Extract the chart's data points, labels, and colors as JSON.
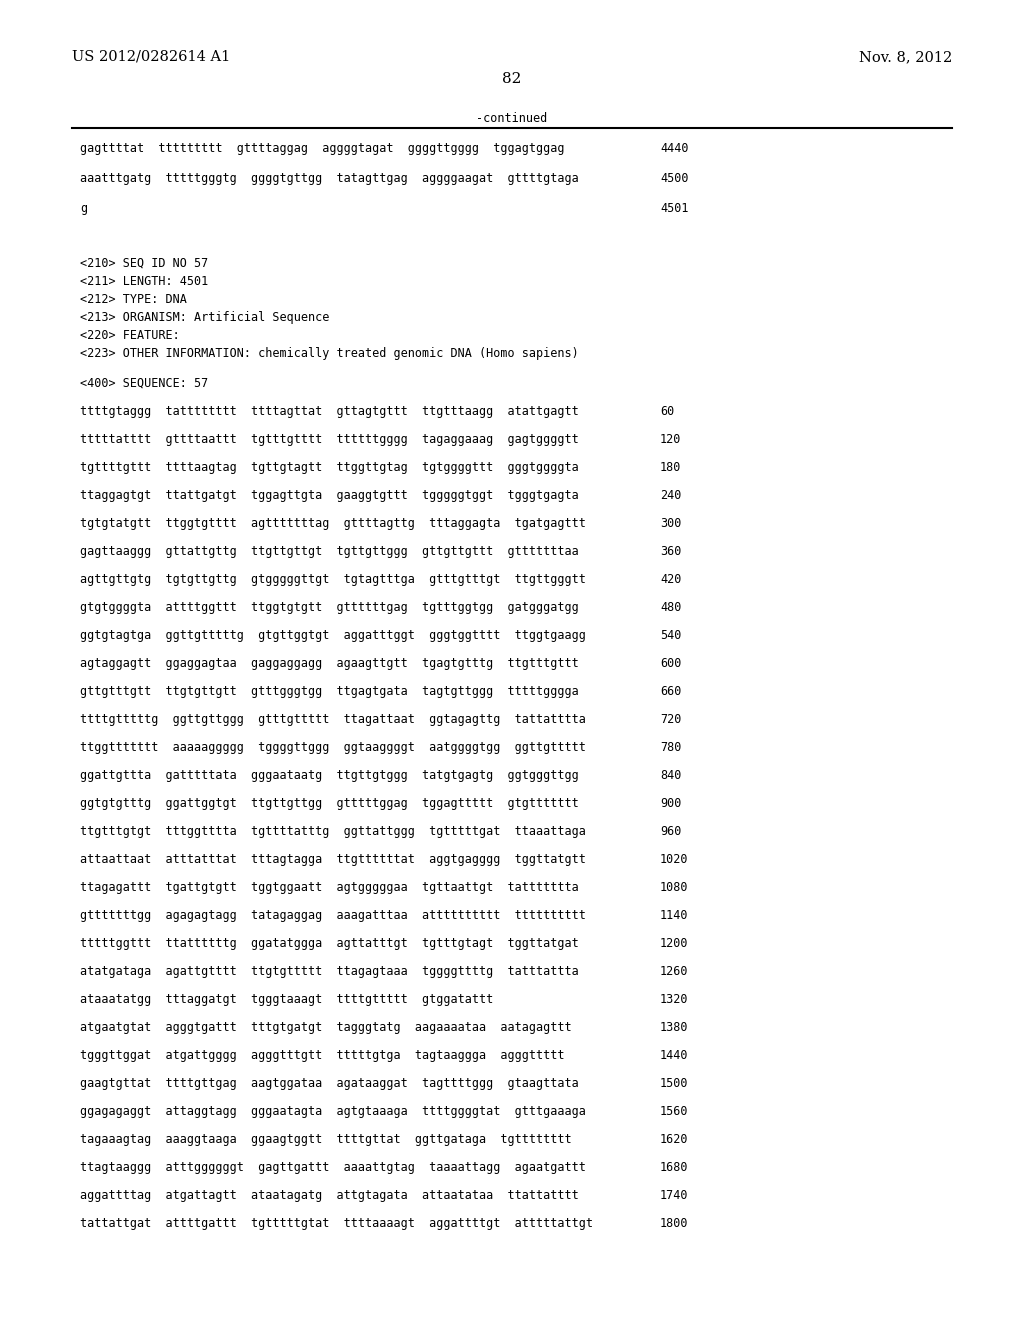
{
  "header_left": "US 2012/0282614 A1",
  "header_right": "Nov. 8, 2012",
  "page_number": "82",
  "continued_label": "-continued",
  "background_color": "#ffffff",
  "text_color": "#000000",
  "font_size_header": 10.5,
  "font_size_body": 8.5,
  "font_size_page": 11,
  "continuation_lines": [
    [
      "gagttttat  ttttttttt  gttttaggag  aggggtagat  ggggttgggg  tggagtggag",
      "4440"
    ],
    [
      "aaatttgatg  tttttgggtg  ggggtgttgg  tatagttgag  aggggaagat  gttttgtaga",
      "4500"
    ],
    [
      "g",
      "4501"
    ]
  ],
  "metadata_lines": [
    "<210> SEQ ID NO 57",
    "<211> LENGTH: 4501",
    "<212> TYPE: DNA",
    "<213> ORGANISM: Artificial Sequence",
    "<220> FEATURE:",
    "<223> OTHER INFORMATION: chemically treated genomic DNA (Homo sapiens)"
  ],
  "sequence_label": "<400> SEQUENCE: 57",
  "sequence_lines": [
    [
      "ttttgtaggg  tatttttttt  ttttagttat  gttagtgttt  ttgtttaagg  atattgagtt",
      "60"
    ],
    [
      "tttttatttt  gttttaattt  tgtttgtttt  ttttttgggg  tagaggaaag  gagtggggtt",
      "120"
    ],
    [
      "tgttttgttt  ttttaagtag  tgttgtagtt  ttggttgtag  tgtggggttt  gggtggggta",
      "180"
    ],
    [
      "ttaggagtgt  ttattgatgt  tggagttgta  gaaggtgttt  tgggggtggt  tgggtgagta",
      "240"
    ],
    [
      "tgtgtatgtt  ttggtgtttt  agtttttttag  gttttagttg  tttaggagta  tgatgagttt",
      "300"
    ],
    [
      "gagttaaggg  gttattgttg  ttgttgttgt  tgttgttggg  gttgttgttt  gtttttttaa",
      "360"
    ],
    [
      "agttgttgtg  tgtgttgttg  gtgggggttgt  tgtagtttga  gtttgtttgt  ttgttgggtt",
      "420"
    ],
    [
      "gtgtggggta  attttggttt  ttggtgtgtt  gttttttgag  tgtttggtgg  gatgggatgg",
      "480"
    ],
    [
      "ggtgtagtga  ggttgtttttg  gtgttggtgt  aggatttggt  gggtggtttt  ttggtgaagg",
      "540"
    ],
    [
      "agtaggagtt  ggaggagtaa  gaggaggagg  agaagttgtt  tgagtgtttg  ttgtttgttt",
      "600"
    ],
    [
      "gttgtttgtt  ttgtgttgtt  gtttgggtgg  ttgagtgata  tagtgttggg  tttttgggga",
      "660"
    ],
    [
      "ttttgtttttg  ggttgttggg  gtttgttttt  ttagattaat  ggtagagttg  tattatttta",
      "720"
    ],
    [
      "ttggttttttt  aaaaaggggg  tggggttggg  ggtaaggggt  aatggggtgg  ggttgttttt",
      "780"
    ],
    [
      "ggattgttta  gatttttata  gggaataatg  ttgttgtggg  tatgtgagtg  ggtgggttgg",
      "840"
    ],
    [
      "ggtgtgtttg  ggattggtgt  ttgttgttgg  gtttttggag  tggagttttt  gtgttttttt",
      "900"
    ],
    [
      "ttgtttgtgt  tttggtttta  tgttttatttg  ggttattggg  tgtttttgat  ttaaattaga",
      "960"
    ],
    [
      "attaattaat  atttatttat  tttagtagga  ttgttttttat  aggtgagggg  tggttatgtt",
      "1020"
    ],
    [
      "ttagagattt  tgattgtgtt  tggtggaatt  agtgggggaa  tgttaattgt  tattttttta",
      "1080"
    ],
    [
      "gtttttttgg  agagagtagg  tatagaggag  aaagatttaa  atttttttttt  tttttttttt",
      "1140"
    ],
    [
      "tttttggttt  ttattttttg  ggatatggga  agttatttgt  tgtttgtagt  tggttatgat",
      "1200"
    ],
    [
      "atatgataga  agattgtttt  ttgtgttttt  ttagagtaaa  tggggttttg  tatttattta",
      "1260"
    ],
    [
      "ataaatatgg  tttaggatgt  tgggtaaagt  ttttgttttt  gtggatattt",
      "1320"
    ],
    [
      "atgaatgtat  agggtgattt  tttgtgatgt  tagggtatg  aagaaaataa  aatagagttt",
      "1380"
    ],
    [
      "tgggttggat  atgattgggg  agggtttgtt  tttttgtga  tagtaaggga  agggttttt",
      "1440"
    ],
    [
      "gaagtgttat  ttttgttgag  aagtggataa  agataaggat  tagttttggg  gtaagttata",
      "1500"
    ],
    [
      "ggagagaggt  attaggtagg  gggaatagta  agtgtaaaga  ttttggggtat  gtttgaaaga",
      "1560"
    ],
    [
      "tagaaagtag  aaaggtaaga  ggaagtggtt  ttttgttat  ggttgataga  tgtttttttt",
      "1620"
    ],
    [
      "ttagtaaggg  atttggggggt  gagttgattt  aaaattgtag  taaaattagg  agaatgattt",
      "1680"
    ],
    [
      "aggattttag  atgattagtt  ataatagatg  attgtagata  attaatataa  ttattatttt",
      "1740"
    ],
    [
      "tattattgat  attttgattt  tgtttttgtat  ttttaaaagt  aggattttgt  atttttattgt",
      "1800"
    ]
  ]
}
